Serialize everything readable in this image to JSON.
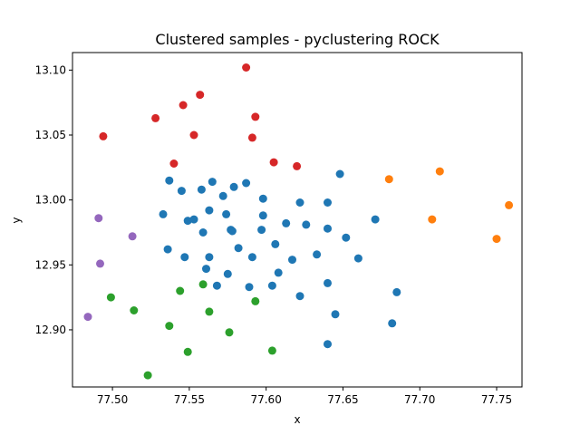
{
  "chart_data": {
    "type": "scatter",
    "title": "Clustered samples - pyclustering ROCK",
    "xlabel": "x",
    "ylabel": "y",
    "xlim": [
      77.474,
      77.7665
    ],
    "ylim": [
      12.856,
      13.1135
    ],
    "xticks": [
      "77.50",
      "77.55",
      "77.60",
      "77.65",
      "77.70",
      "77.75"
    ],
    "xtick_values": [
      77.5,
      77.55,
      77.6,
      77.65,
      77.7,
      77.75
    ],
    "yticks": [
      "12.90",
      "12.95",
      "13.00",
      "13.05",
      "13.10"
    ],
    "ytick_values": [
      12.9,
      12.95,
      13.0,
      13.05,
      13.1
    ],
    "grid": false,
    "legend": "none",
    "series": [
      {
        "color": "#1f77b4",
        "points": [
          [
            77.537,
            13.015
          ],
          [
            77.545,
            13.007
          ],
          [
            77.558,
            13.008
          ],
          [
            77.565,
            13.014
          ],
          [
            77.572,
            13.003
          ],
          [
            77.579,
            13.01
          ],
          [
            77.587,
            13.013
          ],
          [
            77.598,
            13.001
          ],
          [
            77.622,
            12.998
          ],
          [
            77.64,
            12.998
          ],
          [
            77.648,
            13.02
          ],
          [
            77.533,
            12.989
          ],
          [
            77.549,
            12.984
          ],
          [
            77.553,
            12.985
          ],
          [
            77.563,
            12.992
          ],
          [
            77.574,
            12.989
          ],
          [
            77.598,
            12.988
          ],
          [
            77.559,
            12.975
          ],
          [
            77.577,
            12.977
          ],
          [
            77.578,
            12.976
          ],
          [
            77.597,
            12.977
          ],
          [
            77.613,
            12.982
          ],
          [
            77.626,
            12.981
          ],
          [
            77.64,
            12.978
          ],
          [
            77.652,
            12.971
          ],
          [
            77.671,
            12.985
          ],
          [
            77.536,
            12.962
          ],
          [
            77.547,
            12.956
          ],
          [
            77.563,
            12.956
          ],
          [
            77.582,
            12.963
          ],
          [
            77.591,
            12.956
          ],
          [
            77.606,
            12.966
          ],
          [
            77.633,
            12.958
          ],
          [
            77.66,
            12.955
          ],
          [
            77.561,
            12.947
          ],
          [
            77.575,
            12.943
          ],
          [
            77.608,
            12.944
          ],
          [
            77.617,
            12.954
          ],
          [
            77.568,
            12.934
          ],
          [
            77.589,
            12.933
          ],
          [
            77.604,
            12.934
          ],
          [
            77.622,
            12.926
          ],
          [
            77.64,
            12.936
          ],
          [
            77.685,
            12.929
          ],
          [
            77.645,
            12.912
          ],
          [
            77.682,
            12.905
          ],
          [
            77.64,
            12.889
          ]
        ]
      },
      {
        "color": "#ff7f0e",
        "points": [
          [
            77.68,
            13.016
          ],
          [
            77.713,
            13.022
          ],
          [
            77.708,
            12.985
          ],
          [
            77.758,
            12.996
          ],
          [
            77.75,
            12.97
          ]
        ]
      },
      {
        "color": "#2ca02c",
        "points": [
          [
            77.544,
            12.93
          ],
          [
            77.559,
            12.935
          ],
          [
            77.499,
            12.925
          ],
          [
            77.514,
            12.915
          ],
          [
            77.563,
            12.914
          ],
          [
            77.593,
            12.922
          ],
          [
            77.537,
            12.903
          ],
          [
            77.576,
            12.898
          ],
          [
            77.549,
            12.883
          ],
          [
            77.604,
            12.884
          ],
          [
            77.523,
            12.865
          ]
        ]
      },
      {
        "color": "#d62728",
        "points": [
          [
            77.587,
            13.102
          ],
          [
            77.557,
            13.081
          ],
          [
            77.546,
            13.073
          ],
          [
            77.528,
            13.063
          ],
          [
            77.593,
            13.064
          ],
          [
            77.494,
            13.049
          ],
          [
            77.553,
            13.05
          ],
          [
            77.591,
            13.048
          ],
          [
            77.54,
            13.028
          ],
          [
            77.605,
            13.029
          ],
          [
            77.62,
            13.026
          ]
        ]
      },
      {
        "color": "#9467bd",
        "points": [
          [
            77.491,
            12.986
          ],
          [
            77.513,
            12.972
          ],
          [
            77.492,
            12.951
          ],
          [
            77.484,
            12.91
          ]
        ]
      }
    ]
  }
}
